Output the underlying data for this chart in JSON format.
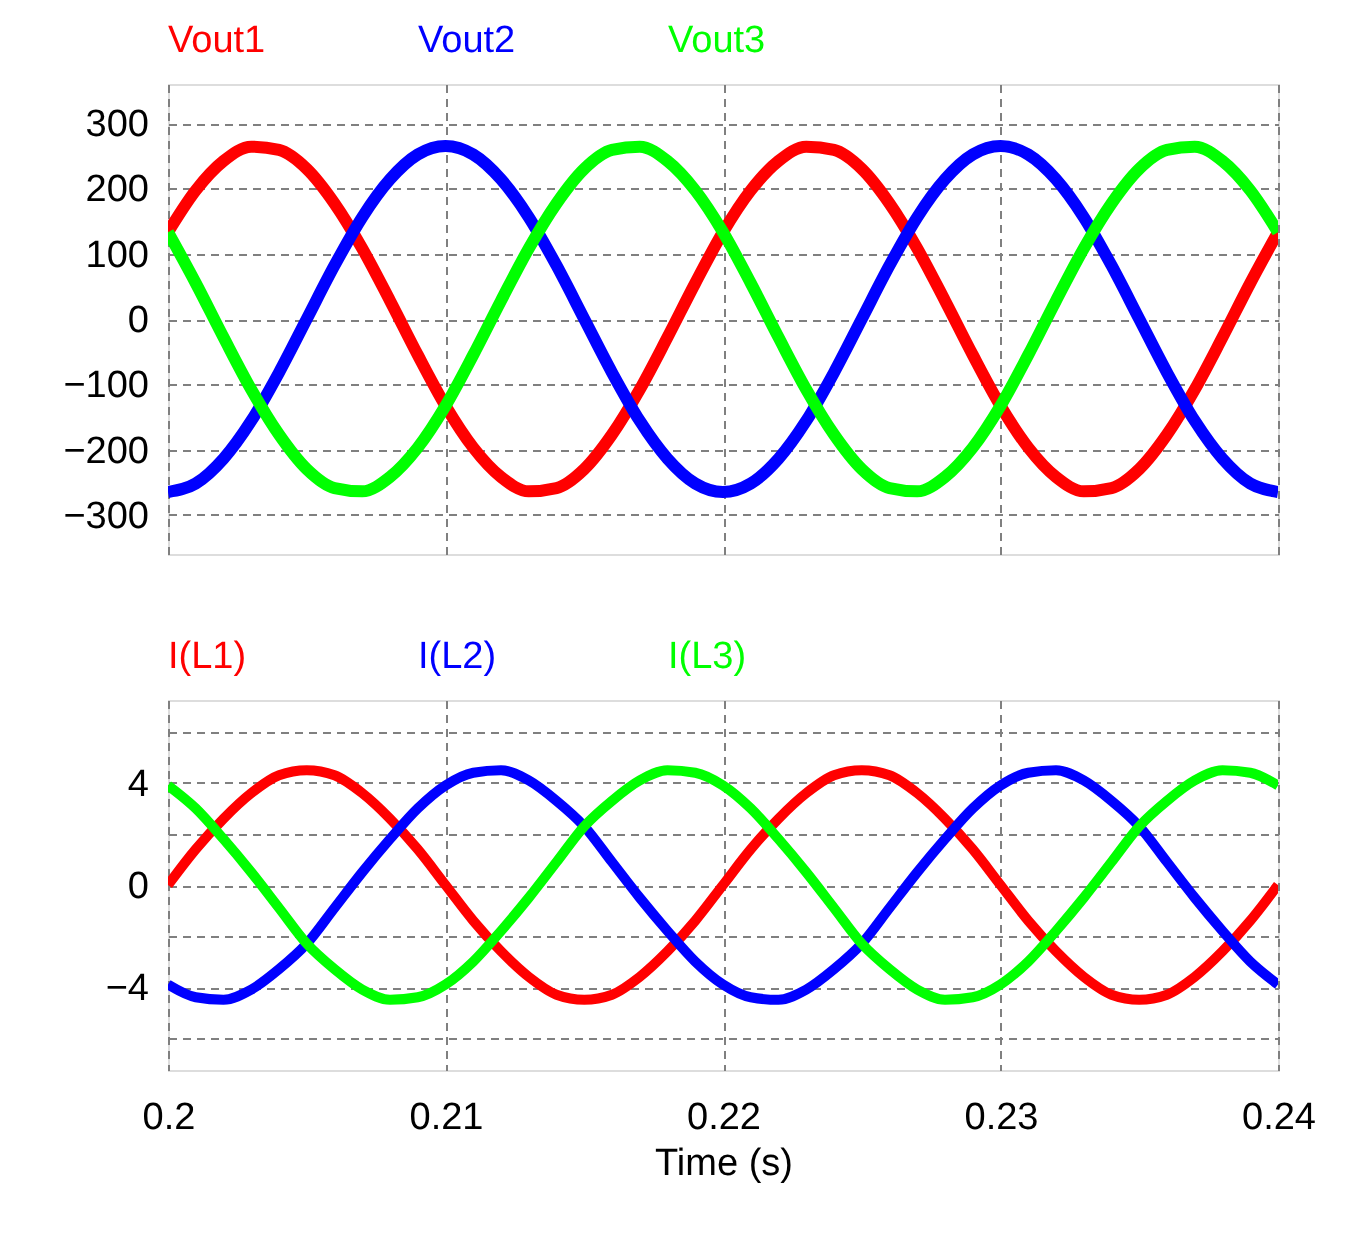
{
  "chart_data": [
    {
      "type": "line",
      "x": [
        0.2,
        0.201,
        0.202,
        0.203,
        0.204,
        0.205,
        0.206,
        0.207,
        0.208,
        0.209,
        0.21,
        0.211,
        0.212,
        0.213,
        0.214,
        0.215,
        0.216,
        0.217,
        0.218,
        0.219,
        0.22,
        0.221,
        0.222,
        0.223,
        0.224,
        0.225,
        0.226,
        0.227,
        0.228,
        0.229,
        0.23,
        0.231,
        0.232,
        0.233,
        0.234,
        0.235,
        0.236,
        0.237,
        0.238,
        0.239,
        0.24
      ],
      "series": [
        {
          "name": "Vout1",
          "color": "#ff0000",
          "values": [
            133,
            197,
            242,
            264,
            259,
            230,
            177,
            108,
            28,
            -55,
            -133,
            -197,
            -242,
            -264,
            -259,
            -230,
            -177,
            -108,
            -28,
            55,
            133,
            197,
            242,
            264,
            259,
            230,
            177,
            108,
            28,
            -55,
            -133,
            -197,
            -242,
            -264,
            -259,
            -230,
            -177,
            -108,
            -28,
            55,
            133
          ]
        },
        {
          "name": "Vout2",
          "color": "#0000ff",
          "values": [
            -265,
            -252,
            -214,
            -156,
            -82,
            0,
            82,
            156,
            214,
            252,
            265,
            252,
            214,
            156,
            82,
            0,
            -82,
            -156,
            -214,
            -252,
            -265,
            -252,
            -214,
            -156,
            -82,
            0,
            82,
            156,
            214,
            252,
            265,
            252,
            214,
            156,
            82,
            0,
            -82,
            -156,
            -214,
            -252,
            -265
          ]
        },
        {
          "name": "Vout3",
          "color": "#00ff00",
          "values": [
            133,
            55,
            -28,
            -108,
            -177,
            -230,
            -259,
            -264,
            -242,
            -197,
            -133,
            -55,
            28,
            108,
            177,
            230,
            259,
            264,
            242,
            197,
            133,
            55,
            -28,
            -108,
            -177,
            -230,
            -259,
            -264,
            -242,
            -197,
            -133,
            -55,
            28,
            108,
            177,
            230,
            259,
            264,
            242,
            197,
            133
          ]
        }
      ],
      "xlim": [
        0.2,
        0.24
      ],
      "xticks": [
        0.2,
        0.21,
        0.22,
        0.23,
        0.24
      ],
      "ylim": [
        -360,
        360
      ],
      "yticks": [
        -300,
        -200,
        -100,
        0,
        100,
        200,
        300
      ],
      "grid": true,
      "legend": "top",
      "tick_labels": "y"
    },
    {
      "type": "line",
      "x": [
        0.2,
        0.201,
        0.202,
        0.203,
        0.204,
        0.205,
        0.206,
        0.207,
        0.208,
        0.209,
        0.21,
        0.211,
        0.212,
        0.213,
        0.214,
        0.215,
        0.216,
        0.217,
        0.218,
        0.219,
        0.22,
        0.221,
        0.222,
        0.223,
        0.224,
        0.225,
        0.226,
        0.227,
        0.228,
        0.229,
        0.23,
        0.231,
        0.232,
        0.233,
        0.234,
        0.235,
        0.236,
        0.237,
        0.238,
        0.239,
        0.24
      ],
      "series": [
        {
          "name": "I(L1)",
          "color": "#ff0000",
          "values": [
            0,
            1.4,
            2.6,
            3.6,
            4.3,
            4.5,
            4.3,
            3.6,
            2.6,
            1.4,
            0,
            -1.4,
            -2.6,
            -3.6,
            -4.3,
            -4.5,
            -4.3,
            -3.6,
            -2.6,
            -1.4,
            0,
            1.4,
            2.6,
            3.6,
            4.3,
            4.5,
            4.3,
            3.6,
            2.6,
            1.4,
            0,
            -1.4,
            -2.6,
            -3.6,
            -4.3,
            -4.5,
            -4.3,
            -3.6,
            -2.6,
            -1.4,
            0
          ]
        },
        {
          "name": "I(L2)",
          "color": "#0000ff",
          "values": [
            -3.9,
            -4.4,
            -4.5,
            -4.1,
            -3.3,
            -2.3,
            -0.9,
            0.5,
            1.8,
            3.0,
            3.9,
            4.4,
            4.5,
            4.1,
            3.3,
            2.3,
            0.9,
            -0.5,
            -1.8,
            -3.0,
            -3.9,
            -4.4,
            -4.5,
            -4.1,
            -3.3,
            -2.3,
            -0.9,
            0.5,
            1.8,
            3.0,
            3.9,
            4.4,
            4.5,
            4.1,
            3.3,
            2.3,
            0.9,
            -0.5,
            -1.8,
            -3.0,
            -3.9
          ]
        },
        {
          "name": "I(L3)",
          "color": "#00ff00",
          "values": [
            3.9,
            3.0,
            1.8,
            0.5,
            -0.9,
            -2.3,
            -3.3,
            -4.1,
            -4.5,
            -4.4,
            -3.9,
            -3.0,
            -1.8,
            -0.5,
            0.9,
            2.3,
            3.3,
            4.1,
            4.5,
            4.4,
            3.9,
            3.0,
            1.8,
            0.5,
            -0.9,
            -2.3,
            -3.3,
            -4.1,
            -4.5,
            -4.4,
            -3.9,
            -3.0,
            -1.8,
            -0.5,
            0.9,
            2.3,
            3.3,
            4.1,
            4.5,
            4.4,
            3.9
          ]
        }
      ],
      "xlabel": "Time (s)",
      "xlim": [
        0.2,
        0.24
      ],
      "xticks": [
        0.2,
        0.21,
        0.22,
        0.23,
        0.24
      ],
      "ylim": [
        -7.25,
        7.25
      ],
      "yticks": [
        {
          "value": -6,
          "label": null
        },
        -4,
        {
          "value": -2,
          "label": null
        },
        0,
        {
          "value": 2,
          "label": null
        },
        4,
        {
          "value": 6,
          "label": null
        }
      ],
      "grid": true,
      "legend": "top"
    }
  ]
}
